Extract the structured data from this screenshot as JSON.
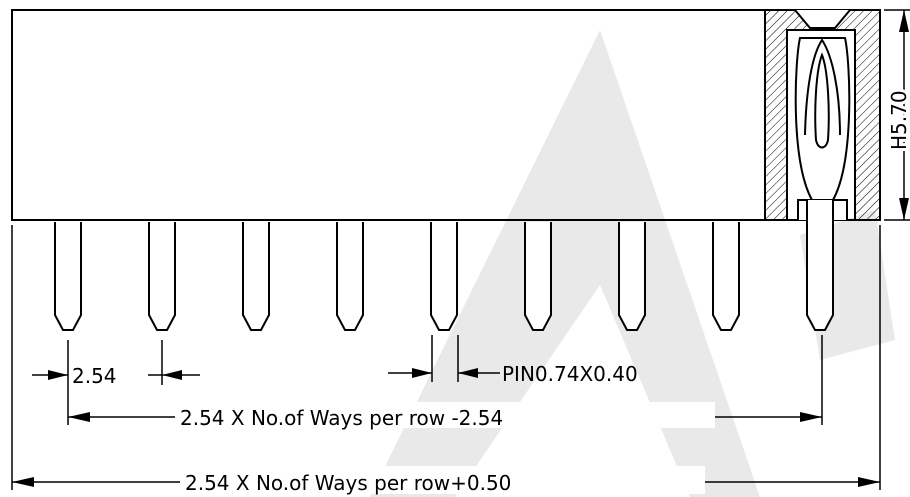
{
  "dimensions": {
    "height": "H5.70",
    "pitch": "2.54",
    "pin": "PIN0.74X0.40",
    "pin_span": "2.54 X No.of Ways per row -2.54",
    "overall": "2.54 X No.of Ways per row+0.50"
  },
  "pin_count": 9,
  "colors": {
    "line": "#000000",
    "watermark": "#e9e9e9"
  }
}
